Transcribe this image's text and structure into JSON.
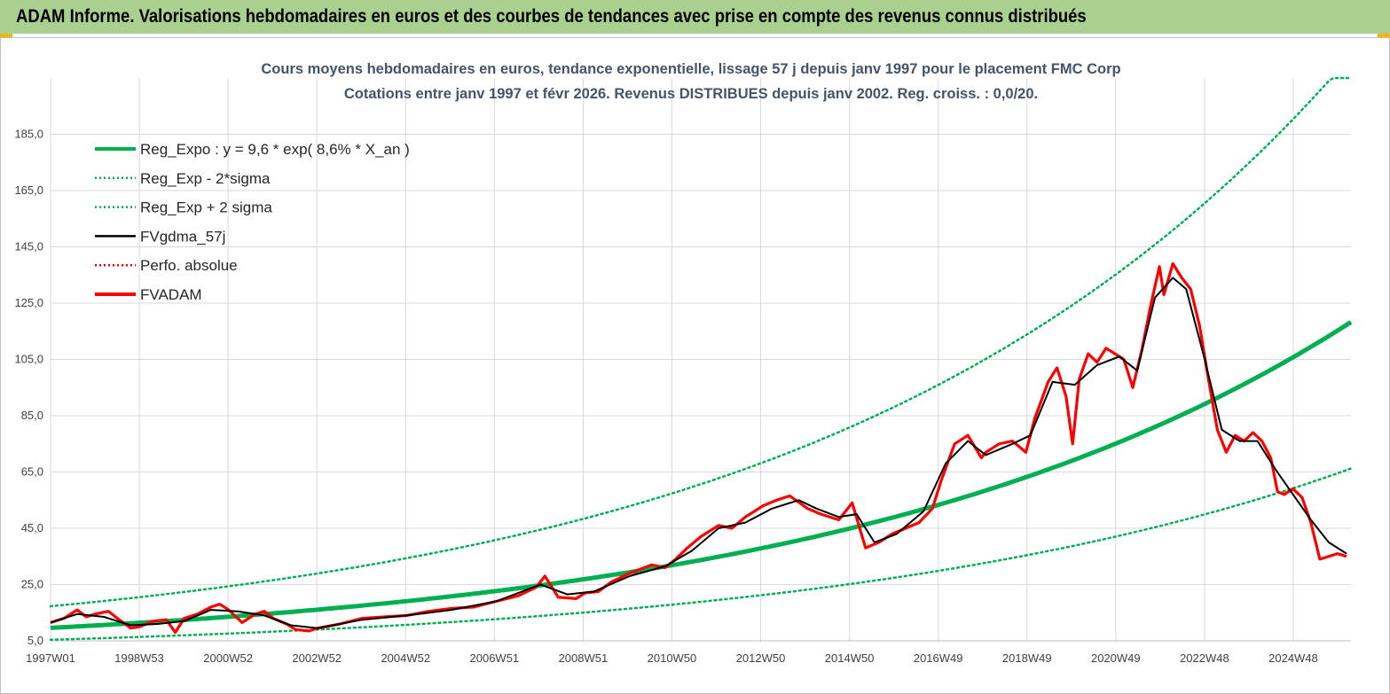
{
  "header": {
    "title": "ADAM Informe. Valorisations hebdomadaires en euros et des courbes de tendances avec prise en compte des revenus connus distribués"
  },
  "colors": {
    "banner": "#a9d08e",
    "trend": "#00b050",
    "smoothed": "#000000",
    "fvadam": "#ff0000",
    "grid": "#d9d9d9"
  },
  "chart_data": {
    "type": "line",
    "title": "Cours moyens hebdomadaires en euros, tendance exponentielle, lissage 57 j depuis janv 1997 pour le placement FMC Corp",
    "subtitle": "Cotations entre janv 1997 et févr 2026. Revenus DISTRIBUES depuis janv 2002. Reg. croiss. : 0,0/20.",
    "x_tick_labels": [
      "1997W01",
      "1998W53",
      "2000W52",
      "2002W52",
      "2004W52",
      "2006W51",
      "2008W51",
      "2010W50",
      "2012W50",
      "2014W50",
      "2016W49",
      "2018W49",
      "2020W49",
      "2022W48",
      "2024W48"
    ],
    "y_tick_labels": [
      "5,0",
      "25,0",
      "45,0",
      "65,0",
      "85,0",
      "105,0",
      "125,0",
      "145,0",
      "165,0",
      "185,0"
    ],
    "ylim": [
      5,
      205
    ],
    "xlim": [
      1997.0,
      2026.2
    ],
    "grid": true,
    "legend_position": "top-left",
    "legend": [
      {
        "label": "Reg_Expo : y = 9,6 * exp( 8,6% *  X_an )",
        "style": "solid-thick",
        "color": "#00b050"
      },
      {
        "label": "Reg_Exp - 2*sigma",
        "style": "dotted",
        "color": "#00b050"
      },
      {
        "label": "Reg_Exp + 2 sigma",
        "style": "dotted",
        "color": "#00b050"
      },
      {
        "label": "FVgdma_57j",
        "style": "solid",
        "color": "#000000"
      },
      {
        "label": "Perfo. absolue",
        "style": "dotted",
        "color": "#ff0000"
      },
      {
        "label": "FVADAM",
        "style": "solid-thick",
        "color": "#ff0000"
      }
    ],
    "regression": {
      "a": 9.6,
      "rate": 0.086,
      "band_lower_factor": 0.56,
      "band_upper_factor": 1.8
    },
    "series": [
      {
        "name": "FVADAM",
        "x": [
          1997.0,
          1997.3,
          1997.6,
          1997.8,
          1998.0,
          1998.3,
          1998.5,
          1998.8,
          1999.0,
          1999.3,
          1999.6,
          1999.8,
          2000.0,
          2000.3,
          2000.6,
          2000.8,
          2001.0,
          2001.3,
          2001.6,
          2001.8,
          2002.0,
          2002.3,
          2002.5,
          2002.8,
          2003.0,
          2003.5,
          2004.0,
          2004.5,
          2005.0,
          2005.5,
          2006.0,
          2006.5,
          2007.0,
          2007.5,
          2007.9,
          2008.1,
          2008.4,
          2008.8,
          2009.0,
          2009.3,
          2009.6,
          2010.0,
          2010.5,
          2010.8,
          2011.0,
          2011.3,
          2011.6,
          2012.0,
          2012.3,
          2012.6,
          2013.0,
          2013.3,
          2013.6,
          2014.0,
          2014.3,
          2014.7,
          2015.0,
          2015.3,
          2015.6,
          2015.9,
          2016.2,
          2016.5,
          2016.8,
          2017.0,
          2017.3,
          2017.6,
          2017.9,
          2018.0,
          2018.3,
          2018.6,
          2018.9,
          2019.1,
          2019.4,
          2019.6,
          2019.8,
          2019.95,
          2020.1,
          2020.3,
          2020.5,
          2020.7,
          2020.9,
          2021.1,
          2021.3,
          2021.5,
          2021.7,
          2021.9,
          2022.0,
          2022.2,
          2022.4,
          2022.6,
          2022.8,
          2023.0,
          2023.2,
          2023.4,
          2023.6,
          2023.8,
          2024.0,
          2024.2,
          2024.4,
          2024.55,
          2024.7,
          2024.9,
          2025.1,
          2025.3,
          2025.5,
          2025.7,
          2025.9,
          2026.1
        ],
        "values": [
          11.5,
          13.0,
          16.0,
          13.5,
          14.5,
          15.5,
          13.0,
          9.5,
          10.0,
          12.0,
          12.5,
          8.0,
          13.0,
          14.5,
          17.0,
          18.0,
          16.0,
          11.5,
          14.5,
          15.5,
          13.0,
          11.0,
          9.0,
          8.5,
          9.5,
          11.0,
          13.0,
          13.5,
          14.0,
          15.5,
          16.5,
          17.0,
          19.0,
          21.0,
          24.0,
          28.0,
          20.5,
          20.0,
          22.0,
          22.5,
          26.0,
          29.0,
          32.0,
          31.0,
          33.5,
          38.0,
          42.0,
          46.0,
          45.0,
          49.0,
          53.0,
          55.0,
          56.5,
          52.0,
          50.0,
          48.0,
          54.0,
          38.0,
          40.0,
          43.0,
          45.0,
          47.0,
          52.0,
          62.0,
          75.0,
          78.0,
          70.0,
          72.0,
          75.0,
          76.0,
          72.0,
          84.0,
          97.0,
          102.0,
          92.0,
          75.0,
          98.0,
          107.0,
          104.0,
          109.0,
          107.0,
          105.0,
          95.0,
          108.0,
          124.0,
          138.0,
          128.0,
          139.0,
          134.0,
          130.0,
          117.0,
          98.0,
          80.0,
          72.0,
          78.0,
          76.0,
          79.0,
          76.0,
          70.0,
          58.0,
          57.0,
          59.0,
          56.0,
          47.0,
          34.0,
          35.0,
          36.0,
          35.0
        ]
      },
      {
        "name": "FVgdma_57j",
        "x": [
          1997.0,
          1997.6,
          1998.2,
          1998.8,
          1999.4,
          2000.0,
          2000.6,
          2001.2,
          2001.8,
          2002.4,
          2003.0,
          2004.0,
          2005.0,
          2006.0,
          2007.0,
          2008.0,
          2008.6,
          2009.2,
          2010.0,
          2010.8,
          2011.4,
          2012.0,
          2012.6,
          2013.2,
          2013.8,
          2014.2,
          2014.7,
          2015.1,
          2015.5,
          2016.0,
          2016.6,
          2017.1,
          2017.6,
          2018.0,
          2018.6,
          2019.0,
          2019.5,
          2020.0,
          2020.5,
          2021.0,
          2021.4,
          2021.8,
          2022.2,
          2022.5,
          2022.9,
          2023.3,
          2023.7,
          2024.1,
          2024.5,
          2024.9,
          2025.3,
          2025.7,
          2026.1
        ],
        "values": [
          11.5,
          14.5,
          13.5,
          10.5,
          11.0,
          12.0,
          16.0,
          15.5,
          14.0,
          10.5,
          9.5,
          12.5,
          14.0,
          16.0,
          19.0,
          25.0,
          21.5,
          22.5,
          28.0,
          31.5,
          37.0,
          45.0,
          47.0,
          52.0,
          55.0,
          52.0,
          49.0,
          50.0,
          40.0,
          43.0,
          51.0,
          68.0,
          76.0,
          71.0,
          75.0,
          78.0,
          97.0,
          96.0,
          103.0,
          106.0,
          101.0,
          127.0,
          134.0,
          130.0,
          106.0,
          80.0,
          76.0,
          76.0,
          66.0,
          57.0,
          48.0,
          40.0,
          36.0
        ]
      }
    ]
  }
}
